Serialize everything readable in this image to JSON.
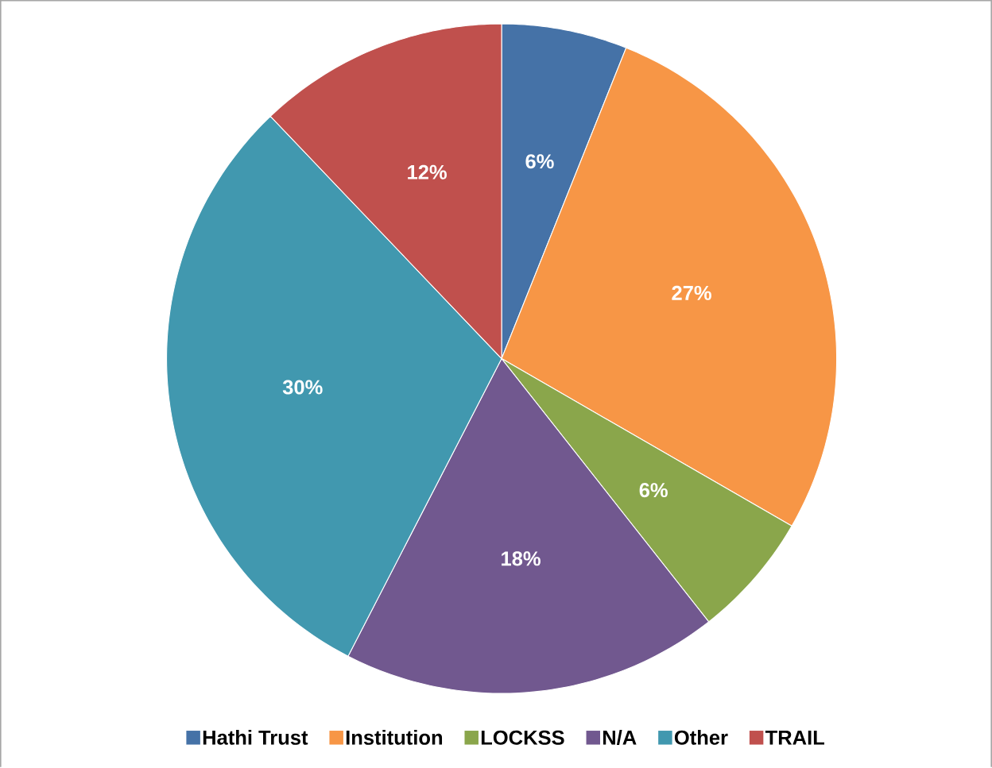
{
  "chart_data": {
    "type": "pie",
    "categories": [
      "Hathi Trust",
      "Institution",
      "LOCKSS",
      "N/A",
      "Other",
      "TRAIL"
    ],
    "values": [
      6,
      27,
      6,
      18,
      30,
      12
    ],
    "colors": [
      "#4572a7",
      "#f79646",
      "#8aa64b",
      "#71588f",
      "#4198af",
      "#c0504d"
    ],
    "value_labels": [
      "6%",
      "27%",
      "6%",
      "18%",
      "30%",
      "12%"
    ],
    "legend": "bottom"
  }
}
